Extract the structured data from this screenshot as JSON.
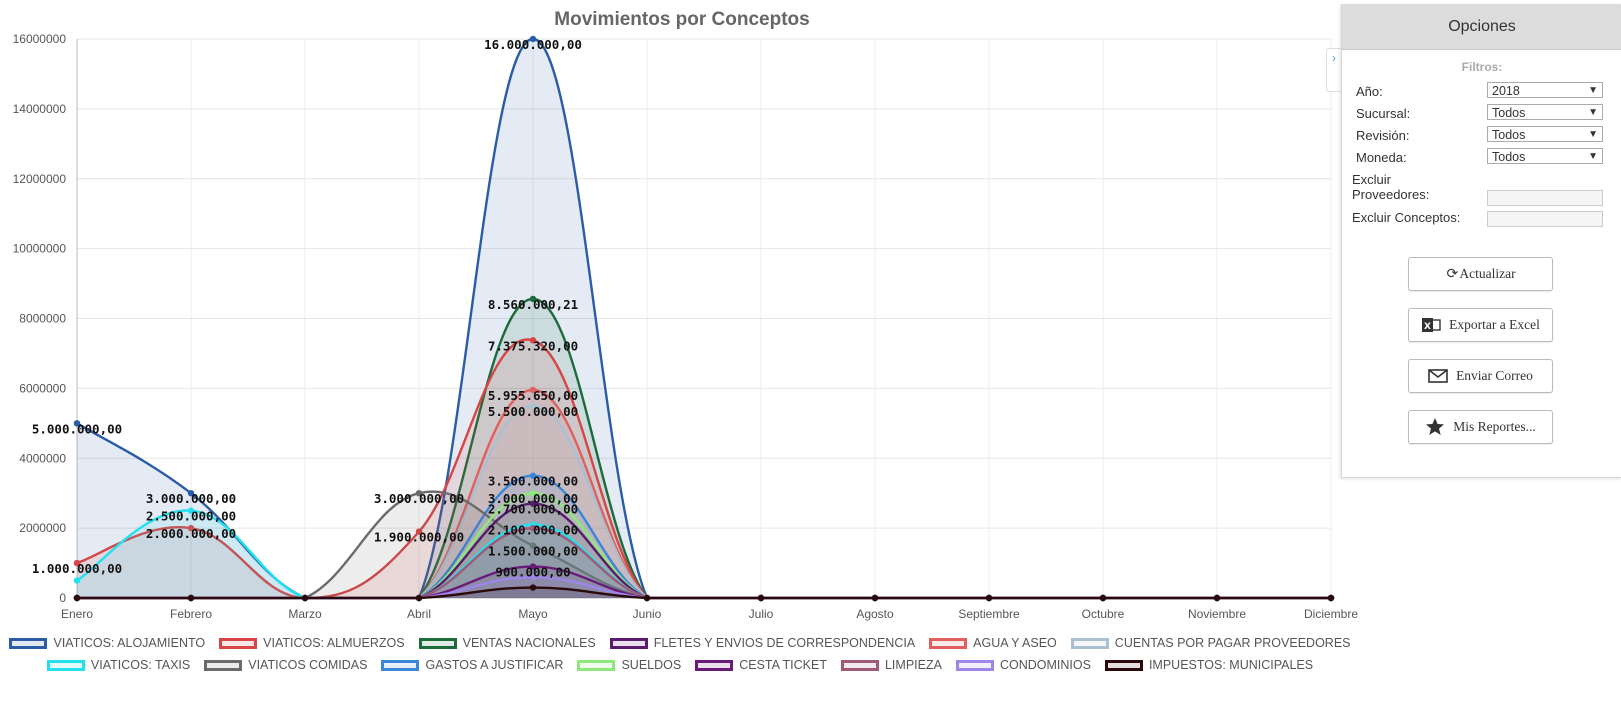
{
  "chart_data": {
    "type": "area",
    "title": "Movimientos por Conceptos",
    "categories": [
      "Enero",
      "Febrero",
      "Marzo",
      "Abril",
      "Mayo",
      "Junio",
      "Julio",
      "Agosto",
      "Septiembre",
      "Octubre",
      "Noviembre",
      "Diciembre"
    ],
    "ylim": [
      0,
      16000000
    ],
    "yticks": [
      "0",
      "2000000",
      "4000000",
      "6000000",
      "8000000",
      "10000000",
      "12000000",
      "14000000",
      "16000000"
    ],
    "grid": true,
    "legend_position": "bottom",
    "series": [
      {
        "name": "VIATICOS: ALOJAMIENTO",
        "color": "#2a5ca8",
        "values": [
          5000000,
          3000000,
          0,
          0,
          16000000,
          0,
          0,
          0,
          0,
          0,
          0,
          0
        ],
        "labels": [
          "5.000.000,00",
          "3.000.000,00",
          "",
          "",
          "16.000.000,00",
          "",
          "",
          "",
          "",
          "",
          "",
          ""
        ]
      },
      {
        "name": "VIATICOS: ALMUERZOS",
        "color": "#d94444",
        "values": [
          1000000,
          2000000,
          0,
          1900000,
          7375320,
          0,
          0,
          0,
          0,
          0,
          0,
          0
        ],
        "labels": [
          "1.000.000,00",
          "2.000.000,00",
          "",
          "1.900.000,00",
          "7.375.320,00",
          "",
          "",
          "",
          "",
          "",
          "",
          ""
        ]
      },
      {
        "name": "VENTAS NACIONALES",
        "color": "#1c6b3a",
        "values": [
          0,
          0,
          0,
          0,
          8560000,
          0,
          0,
          0,
          0,
          0,
          0,
          0
        ],
        "labels": [
          "",
          "",
          "",
          "",
          "8.560.000,21",
          "",
          "",
          "",
          "",
          "",
          "",
          ""
        ]
      },
      {
        "name": "FLETES Y ENVIOS DE CORRESPONDENCIA",
        "color": "#5a1a6e",
        "values": [
          0,
          0,
          0,
          0,
          2700000,
          0,
          0,
          0,
          0,
          0,
          0,
          0
        ],
        "labels": [
          "",
          "",
          "",
          "",
          "2.700.000,00",
          "",
          "",
          "",
          "",
          "",
          "",
          ""
        ]
      },
      {
        "name": "AGUA Y ASEO",
        "color": "#e06060",
        "values": [
          0,
          0,
          0,
          0,
          5955650,
          0,
          0,
          0,
          0,
          0,
          0,
          0
        ],
        "labels": [
          "",
          "",
          "",
          "",
          "5.955.650,00",
          "",
          "",
          "",
          "",
          "",
          "",
          ""
        ]
      },
      {
        "name": "CUENTAS POR PAGAR PROVEEDORES",
        "color": "#aabfcf",
        "values": [
          0,
          0,
          0,
          0,
          5500000,
          0,
          0,
          0,
          0,
          0,
          0,
          0
        ],
        "labels": [
          "",
          "",
          "",
          "",
          "5.500.000,00",
          "",
          "",
          "",
          "",
          "",
          "",
          ""
        ]
      },
      {
        "name": "VIATICOS: TAXIS",
        "color": "#22e0ee",
        "values": [
          500000,
          2500000,
          0,
          0,
          2100000,
          0,
          0,
          0,
          0,
          0,
          0,
          0
        ],
        "labels": [
          "",
          "2.500.000,00",
          "",
          "",
          "2.100.000,00",
          "",
          "",
          "",
          "",
          "",
          "",
          ""
        ]
      },
      {
        "name": "VIATICOS COMIDAS",
        "color": "#6a6a6a",
        "values": [
          0,
          0,
          0,
          3000000,
          1500000,
          0,
          0,
          0,
          0,
          0,
          0,
          0
        ],
        "labels": [
          "",
          "",
          "",
          "3.000.000,00",
          "1.500.000,00",
          "",
          "",
          "",
          "",
          "",
          "",
          ""
        ]
      },
      {
        "name": "GASTOS A JUSTIFICAR",
        "color": "#3a86d9",
        "values": [
          0,
          0,
          0,
          0,
          3500000,
          0,
          0,
          0,
          0,
          0,
          0,
          0
        ],
        "labels": [
          "",
          "",
          "",
          "",
          "3.500.000,00",
          "",
          "",
          "",
          "",
          "",
          "",
          ""
        ]
      },
      {
        "name": "SUELDOS",
        "color": "#8ee87a",
        "values": [
          0,
          0,
          0,
          0,
          3000000,
          0,
          0,
          0,
          0,
          0,
          0,
          0
        ],
        "labels": [
          "",
          "",
          "",
          "",
          "3.000.000,00",
          "",
          "",
          "",
          "",
          "",
          "",
          ""
        ]
      },
      {
        "name": "CESTA TICKET",
        "color": "#6a1b7a",
        "values": [
          0,
          0,
          0,
          0,
          900000,
          0,
          0,
          0,
          0,
          0,
          0,
          0
        ],
        "labels": [
          "",
          "",
          "",
          "",
          "900.000,00",
          "",
          "",
          "",
          "",
          "",
          "",
          ""
        ]
      },
      {
        "name": "LIMPIEZA",
        "color": "#a05a78",
        "values": [
          0,
          0,
          0,
          0,
          2000000,
          0,
          0,
          0,
          0,
          0,
          0,
          0
        ],
        "labels": [
          "",
          "",
          "",
          "",
          "",
          "",
          "",
          "",
          "",
          "",
          "",
          ""
        ]
      },
      {
        "name": "CONDOMINIOS",
        "color": "#9e86ea",
        "values": [
          0,
          0,
          0,
          0,
          600000,
          0,
          0,
          0,
          0,
          0,
          0,
          0
        ],
        "labels": [
          "",
          "",
          "",
          "",
          "",
          "",
          "",
          "",
          "",
          "",
          "",
          ""
        ]
      },
      {
        "name": "IMPUESTOS: MUNICIPALES",
        "color": "#2a0a0a",
        "values": [
          0,
          0,
          0,
          0,
          300000,
          0,
          0,
          0,
          0,
          0,
          0,
          0
        ],
        "labels": [
          "",
          "",
          "",
          "",
          "",
          "",
          "",
          "",
          "",
          "",
          "",
          ""
        ]
      }
    ]
  },
  "panel": {
    "title": "Opciones",
    "subtitle": "Filtros:",
    "anio_label": "Año:",
    "anio_value": "2018",
    "sucursal_label": "Sucursal:",
    "sucursal_value": "Todos",
    "revision_label": "Revisión:",
    "revision_value": "Todos",
    "moneda_label": "Moneda:",
    "moneda_value": "Todos",
    "excluir_prov_label_1": "Excluir",
    "excluir_prov_label_2": "Proveedores:",
    "excluir_conc_label": "Excluir Conceptos:",
    "btn_actualizar": "Actualizar",
    "btn_excel": "Exportar a Excel",
    "btn_correo": "Enviar Correo",
    "btn_reportes": "Mis Reportes..."
  },
  "collapse_tab_glyph": "›"
}
